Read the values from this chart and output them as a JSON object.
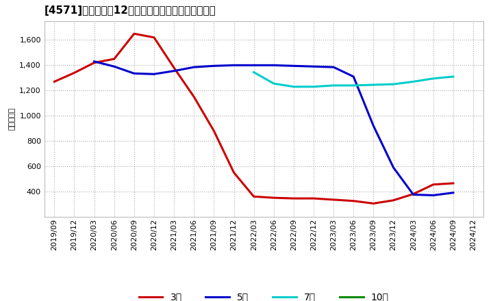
{
  "title": "[4571]　経常利益12か月移動合計の標準偏差の推移",
  "ylabel": "（百万円）",
  "background_color": "#ffffff",
  "plot_bg_color": "#ffffff",
  "grid_color": "#aaaaaa",
  "title_fontsize": 11,
  "axis_fontsize": 8,
  "legend_fontsize": 10,
  "x_labels": [
    "2019/09",
    "2019/12",
    "2020/03",
    "2020/06",
    "2020/09",
    "2020/12",
    "2021/03",
    "2021/06",
    "2021/09",
    "2021/12",
    "2022/03",
    "2022/06",
    "2022/09",
    "2022/12",
    "2023/03",
    "2023/06",
    "2023/09",
    "2023/12",
    "2024/03",
    "2024/06",
    "2024/09",
    "2024/12"
  ],
  "series_order": [
    "3年",
    "5年",
    "7年",
    "10年"
  ],
  "series": {
    "3年": {
      "color": "#cc0000",
      "data_x": [
        0,
        1,
        2,
        3,
        4,
        5,
        6,
        7,
        8,
        9,
        10,
        11,
        12,
        13,
        14,
        15,
        16,
        17,
        18,
        19,
        20
      ],
      "data_y": [
        1270,
        1340,
        1420,
        1450,
        1650,
        1620,
        1380,
        1150,
        880,
        550,
        360,
        350,
        345,
        345,
        335,
        325,
        305,
        330,
        380,
        455,
        465
      ]
    },
    "5年": {
      "color": "#0000cc",
      "data_x": [
        2,
        3,
        4,
        5,
        6,
        7,
        8,
        9,
        10,
        11,
        12,
        13,
        14,
        15,
        16,
        17,
        18,
        19,
        20
      ],
      "data_y": [
        1430,
        1390,
        1335,
        1330,
        1355,
        1385,
        1395,
        1400,
        1400,
        1400,
        1395,
        1390,
        1385,
        1310,
        920,
        590,
        375,
        370,
        390
      ]
    },
    "7年": {
      "color": "#00cccc",
      "data_x": [
        10,
        11,
        12,
        13,
        14,
        15,
        16,
        17,
        18,
        19,
        20
      ],
      "data_y": [
        1345,
        1255,
        1230,
        1230,
        1240,
        1240,
        1245,
        1250,
        1270,
        1295,
        1310
      ]
    },
    "10年": {
      "color": "#008800",
      "data_x": [],
      "data_y": []
    }
  },
  "ylim": [
    200,
    1750
  ],
  "yticks": [
    400,
    600,
    800,
    1000,
    1200,
    1400,
    1600
  ],
  "figsize": [
    7.2,
    4.4
  ],
  "dpi": 100
}
